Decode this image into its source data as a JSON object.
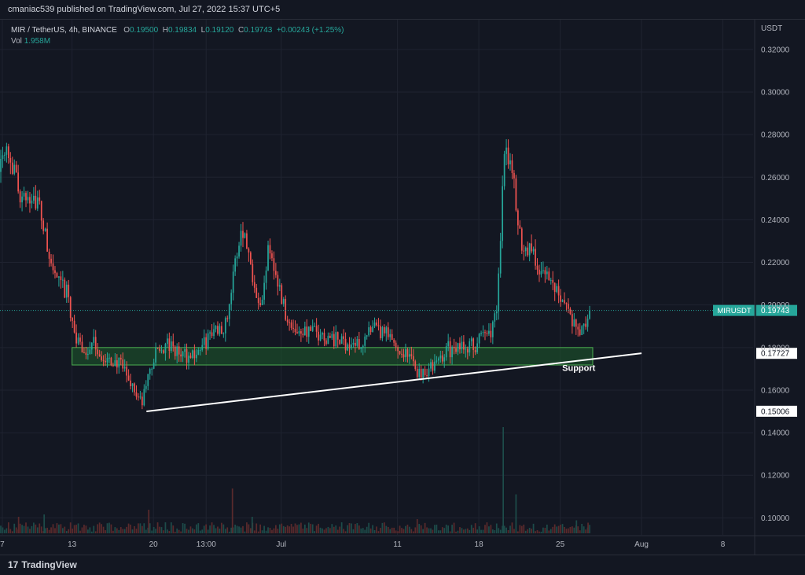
{
  "publisher_line": "cmaniac539 published on TradingView.com, Jul 27, 2022 15:37 UTC+5",
  "legend": {
    "symbol": "MIR / TetherUS, 4h, BINANCE",
    "open_label": "O",
    "open": "0.19500",
    "high_label": "H",
    "high": "0.19834",
    "low_label": "L",
    "low": "0.19120",
    "close_label": "C",
    "close": "0.19743",
    "change": "+0.00243 (+1.25%)",
    "vol_label": "Vol",
    "vol": "1.958M"
  },
  "footer": {
    "brand": "TradingView",
    "logo_text": "17"
  },
  "colors": {
    "background": "#131722",
    "up": "#26a69a",
    "down": "#ef5350",
    "zone_fill": "#1e5b2c",
    "zone_border": "#4caf50",
    "trendline": "#ffffff"
  },
  "chart_data": {
    "type": "candlestick",
    "currency_label": "USDT",
    "y_ticks": [
      "0.32000",
      "0.30000",
      "0.28000",
      "0.26000",
      "0.24000",
      "0.22000",
      "0.20000",
      "0.18000",
      "0.16000",
      "0.14000",
      "0.12000",
      "0.10000"
    ],
    "ylim": [
      0.092,
      0.334
    ],
    "x_ticks": [
      {
        "label": "7",
        "day": 7
      },
      {
        "label": "13",
        "day": 13
      },
      {
        "label": "20",
        "day": 20
      },
      {
        "label": "13:00",
        "day": 24.54
      },
      {
        "label": "Jul",
        "day": 31
      },
      {
        "label": "11",
        "day": 41
      },
      {
        "label": "18",
        "day": 48
      },
      {
        "label": "25",
        "day": 55
      },
      {
        "label": "Aug",
        "day": 62
      },
      {
        "label": "8",
        "day": 69
      }
    ],
    "x_range_days": [
      6.8,
      71.6
    ],
    "price_path": [
      {
        "day": 6.7,
        "price": 0.268
      },
      {
        "day": 7.3,
        "price": 0.278
      },
      {
        "day": 8.0,
        "price": 0.262
      },
      {
        "day": 8.8,
        "price": 0.248
      },
      {
        "day": 9.6,
        "price": 0.253
      },
      {
        "day": 10.3,
        "price": 0.244
      },
      {
        "day": 11.0,
        "price": 0.222
      },
      {
        "day": 11.8,
        "price": 0.21
      },
      {
        "day": 12.6,
        "price": 0.205
      },
      {
        "day": 13.4,
        "price": 0.182
      },
      {
        "day": 14.2,
        "price": 0.178
      },
      {
        "day": 15.0,
        "price": 0.182
      },
      {
        "day": 15.8,
        "price": 0.172
      },
      {
        "day": 16.6,
        "price": 0.174
      },
      {
        "day": 17.4,
        "price": 0.17
      },
      {
        "day": 18.2,
        "price": 0.162
      },
      {
        "day": 19.0,
        "price": 0.153
      },
      {
        "day": 19.6,
        "price": 0.168
      },
      {
        "day": 20.3,
        "price": 0.178
      },
      {
        "day": 21.2,
        "price": 0.181
      },
      {
        "day": 22.2,
        "price": 0.177
      },
      {
        "day": 23.2,
        "price": 0.176
      },
      {
        "day": 24.2,
        "price": 0.18
      },
      {
        "day": 25.2,
        "price": 0.188
      },
      {
        "day": 26.2,
        "price": 0.191
      },
      {
        "day": 26.9,
        "price": 0.214
      },
      {
        "day": 27.6,
        "price": 0.238
      },
      {
        "day": 28.2,
        "price": 0.224
      },
      {
        "day": 28.8,
        "price": 0.208
      },
      {
        "day": 29.4,
        "price": 0.2
      },
      {
        "day": 29.9,
        "price": 0.232
      },
      {
        "day": 30.6,
        "price": 0.212
      },
      {
        "day": 31.2,
        "price": 0.2
      },
      {
        "day": 31.8,
        "price": 0.189
      },
      {
        "day": 33.0,
        "price": 0.188
      },
      {
        "day": 34.5,
        "price": 0.186
      },
      {
        "day": 36.0,
        "price": 0.183
      },
      {
        "day": 37.5,
        "price": 0.181
      },
      {
        "day": 39.0,
        "price": 0.188
      },
      {
        "day": 40.0,
        "price": 0.186
      },
      {
        "day": 41.0,
        "price": 0.18
      },
      {
        "day": 42.0,
        "price": 0.176
      },
      {
        "day": 42.8,
        "price": 0.168
      },
      {
        "day": 43.6,
        "price": 0.17
      },
      {
        "day": 44.4,
        "price": 0.172
      },
      {
        "day": 45.2,
        "price": 0.18
      },
      {
        "day": 46.0,
        "price": 0.178
      },
      {
        "day": 46.8,
        "price": 0.182
      },
      {
        "day": 47.6,
        "price": 0.18
      },
      {
        "day": 48.4,
        "price": 0.186
      },
      {
        "day": 49.2,
        "price": 0.189
      },
      {
        "day": 49.6,
        "price": 0.2
      },
      {
        "day": 50.2,
        "price": 0.276
      },
      {
        "day": 50.8,
        "price": 0.268
      },
      {
        "day": 51.3,
        "price": 0.24
      },
      {
        "day": 51.8,
        "price": 0.226
      },
      {
        "day": 52.4,
        "price": 0.228
      },
      {
        "day": 53.0,
        "price": 0.218
      },
      {
        "day": 53.7,
        "price": 0.214
      },
      {
        "day": 54.4,
        "price": 0.21
      },
      {
        "day": 55.1,
        "price": 0.205
      },
      {
        "day": 55.8,
        "price": 0.196
      },
      {
        "day": 56.5,
        "price": 0.186
      },
      {
        "day": 57.2,
        "price": 0.19
      },
      {
        "day": 57.6,
        "price": 0.1974
      }
    ],
    "volume_spikes": [
      {
        "day": 50.1,
        "volume_frac": 0.9
      },
      {
        "day": 26.8,
        "volume_frac": 0.38
      },
      {
        "day": 51.2,
        "volume_frac": 0.33
      },
      {
        "day": 19.6,
        "volume_frac": 0.2
      },
      {
        "day": 10.6,
        "volume_frac": 0.16
      },
      {
        "day": 8.4,
        "volume_frac": 0.14
      },
      {
        "day": 28.5,
        "volume_frac": 0.14
      },
      {
        "day": 42.7,
        "volume_frac": 0.12
      },
      {
        "day": 56.4,
        "volume_frac": 0.11
      },
      {
        "day": 57.4,
        "volume_frac": 0.09
      }
    ],
    "support_zone": {
      "price_low": 0.1718,
      "price_high": 0.18,
      "day_start": 13.0,
      "day_end": 57.8
    },
    "trendline": {
      "start": {
        "day": 19.4,
        "price": 0.15
      },
      "end": {
        "day": 62.0,
        "price": 0.1773
      }
    },
    "annotation": {
      "text": "Support",
      "day": 56.6,
      "price": 0.169
    },
    "last_price": {
      "symbol": "MIRUSDT",
      "value": "0.19743",
      "price": 0.19743
    },
    "level_labels": [
      {
        "value": "0.17727",
        "price": 0.17727
      },
      {
        "value": "0.15006",
        "price": 0.15006
      }
    ]
  }
}
